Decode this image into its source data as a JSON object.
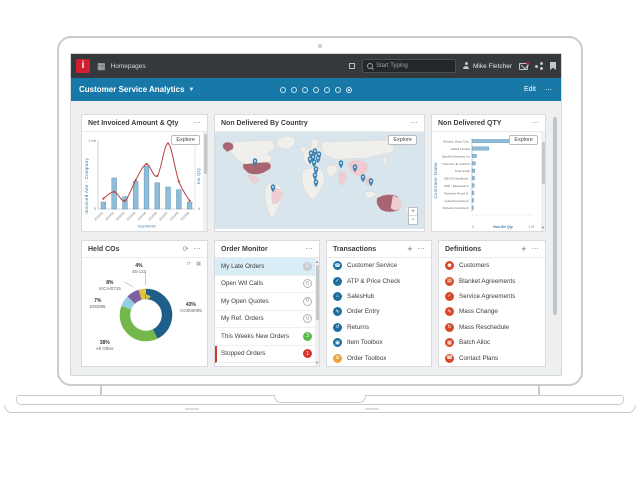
{
  "topbar": {
    "logo_letter": "i",
    "app_label": "Homepages",
    "search_placeholder": "Start Typing",
    "user_name": "Mike Fletcher"
  },
  "titlebar": {
    "title": "Customer Service Analytics",
    "edit_label": "Edit",
    "overflow": "⋯"
  },
  "cards": {
    "net_invoiced": {
      "title": "Net Invoiced Amount & Qty",
      "explore": "Explore",
      "menu": "⋯"
    },
    "map": {
      "title": "Non Delivered By Country",
      "explore": "Explore",
      "menu": "⋯",
      "zoom_in": "+",
      "zoom_out": "−",
      "highlight_colors": {
        "high": "#a86470",
        "medium": "#f0ccd2",
        "pin": "#3f87b5"
      }
    },
    "non_del_qty": {
      "title": "Non Delivered QTY",
      "explore": "Explore",
      "menu": "⋯"
    },
    "held_cos": {
      "title": "Held COs",
      "menu": "⋯",
      "refresh": "⟳",
      "calendar": "▦"
    },
    "order_monitor": {
      "title": "Order Monitor",
      "menu": "⋯",
      "items": [
        {
          "label": "My Late Orders",
          "badge": "0"
        },
        {
          "label": "Open Wtl Calls",
          "badge": "0"
        },
        {
          "label": "My Open Quotes",
          "badge": "0"
        },
        {
          "label": "My Ref. Orders",
          "badge": "0"
        },
        {
          "label": "This Weeks New Orders",
          "badge": "3"
        },
        {
          "label": "Stopped Orders",
          "badge": "1"
        }
      ]
    },
    "transactions": {
      "title": "Transactions",
      "add": "+",
      "menu": "⋯",
      "items": [
        {
          "label": "Customer Service",
          "icon": "☎"
        },
        {
          "label": "ATP & Price Check",
          "icon": "✓"
        },
        {
          "label": "SalesHub",
          "icon": "⌂"
        },
        {
          "label": "Order Entry",
          "icon": "✎"
        },
        {
          "label": "Returns",
          "icon": "↺"
        },
        {
          "label": "Item Toolbox",
          "icon": "▣"
        },
        {
          "label": "Order Toolbox",
          "icon": "⚙"
        }
      ]
    },
    "definitions": {
      "title": "Definitions",
      "add": "+",
      "menu": "⋯",
      "items": [
        {
          "label": "Customers",
          "icon": "⚉"
        },
        {
          "label": "Blanket Agreements",
          "icon": "▤"
        },
        {
          "label": "Service Agreements",
          "icon": "✓"
        },
        {
          "label": "Mass Change",
          "icon": "✎"
        },
        {
          "label": "Mass Reschedule",
          "icon": "↻"
        },
        {
          "label": "Batch Alloc",
          "icon": "▦"
        },
        {
          "label": "Contact Plans",
          "icon": "☎"
        }
      ]
    }
  },
  "chart_data": [
    {
      "type": "bar",
      "subtype": "bar-line-combo",
      "title": "Net Invoiced Amount & Qty",
      "categories": [
        "2016/01",
        "2016/02",
        "2016/03",
        "2016/04",
        "2016/05",
        "2016/06",
        "2016/07",
        "2016/08",
        "2016/09"
      ],
      "series": [
        {
          "name": "Net Invoiced Amt",
          "kind": "bar",
          "values": [
            0.1,
            0.45,
            0.18,
            0.4,
            0.62,
            0.38,
            0.32,
            0.28,
            0.1
          ]
        },
        {
          "name": "Inv Qty",
          "kind": "line",
          "values": [
            0.15,
            0.25,
            0.12,
            0.42,
            0.65,
            0.48,
            0.95,
            0.4,
            0.12
          ]
        }
      ],
      "xlabel": "Year/Month",
      "ylabel": "Invoiced Amt - Company",
      "y2label": "Inv Qty",
      "ylim": [
        0,
        1
      ],
      "yticks": [
        "1 mil",
        "0"
      ],
      "bar_color": "#8fbcd9",
      "line_color": "#b5413f"
    },
    {
      "type": "bar",
      "subtype": "horizontal",
      "title": "Non Delivered QTY",
      "categories": [
        "Generic Shop Cus..",
        "Adball Limited",
        "BanW Industries Inc",
        "Thomson E. Garford",
        "Paul Smith",
        "DELTA Distributio..",
        "ADP - Electrical S..",
        "Friedrich Roedl G..",
        "Gobell Constructi..",
        "Roberts Constructi.."
      ],
      "values": [
        0.95,
        0.3,
        0.08,
        0.06,
        0.05,
        0.045,
        0.04,
        0.035,
        0.03,
        0.025
      ],
      "xlabel": "Non Del Qty",
      "ylabel": "Customer Name",
      "xlim": [
        0,
        1
      ],
      "xticks": [
        "0",
        "1 M"
      ],
      "bar_color": "#8fbcd9"
    },
    {
      "type": "pie",
      "subtype": "donut",
      "title": "Held COs",
      "slices": [
        {
          "label": "CG000005",
          "pct": 43,
          "pct_text": "43%",
          "color": "#1d5f8a"
        },
        {
          "label": "All Other",
          "pct": 38,
          "pct_text": "38%",
          "color": "#74b74a"
        },
        {
          "label": "E00095",
          "pct": 7,
          "pct_text": "7%",
          "color": "#93cfe0"
        },
        {
          "label": "KICA/0715",
          "pct": 8,
          "pct_text": "8%",
          "color": "#7e5fa0"
        },
        {
          "label": "45-133",
          "pct": 4,
          "pct_text": "4%",
          "color": "#e0c23a"
        }
      ],
      "legend_position": "callout-labels"
    }
  ]
}
